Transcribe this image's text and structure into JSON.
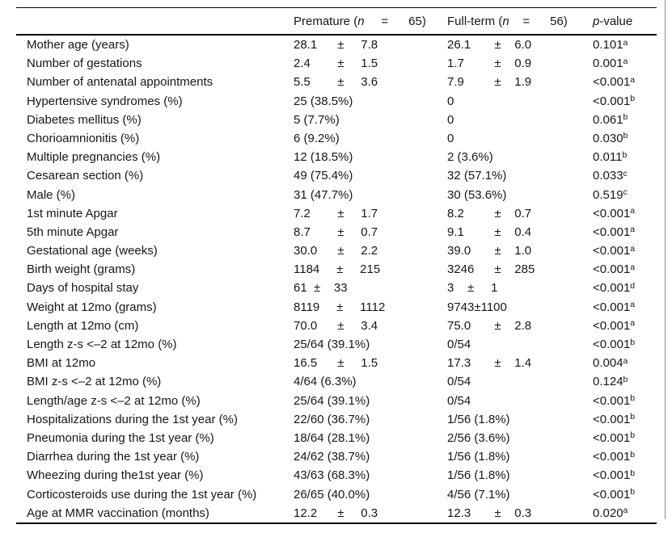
{
  "table": {
    "header": {
      "col1": "",
      "col2": {
        "prefix": "Premature (",
        "n": "n",
        "post": "     =      65)"
      },
      "col3": {
        "prefix": "Full-term (",
        "n": "n",
        "post": "    =      56)"
      },
      "col4": {
        "p": "p",
        "post": "-value"
      }
    },
    "rows": [
      {
        "label": "Mother age (years)",
        "premature": "28.1      ±     7.8",
        "fullterm": "26.1       ±    6.0",
        "p": "0.101",
        "p_sup": "a"
      },
      {
        "label": "Number of gestations",
        "premature": "2.4        ±     1.5",
        "fullterm": "1.7         ±    0.9",
        "p": "0.001",
        "p_sup": "a"
      },
      {
        "label": "Number of antenatal appointments",
        "premature": "5.5        ±     3.6",
        "fullterm": "7.9         ±    1.9",
        "p": "<0.001",
        "p_sup": "a"
      },
      {
        "label": "Hypertensive syndromes (%)",
        "premature": "25 (38.5%)",
        "fullterm": "0",
        "p": "<0.001",
        "p_sup": "b"
      },
      {
        "label": "Diabetes mellitus (%)",
        "premature": "5 (7.7%)",
        "fullterm": "0",
        "p": "0.061",
        "p_sup": "b"
      },
      {
        "label": "Chorioamnionitis (%)",
        "premature": "6 (9.2%)",
        "fullterm": "0",
        "p": "0.030",
        "p_sup": "b"
      },
      {
        "label": "Multiple pregnancies (%)",
        "premature": "12 (18.5%)",
        "fullterm": "2 (3.6%)",
        "p": "0.011",
        "p_sup": "b"
      },
      {
        "label": "Cesarean section (%)",
        "premature": "49 (75.4%)",
        "fullterm": "32 (57.1%)",
        "p": "0.033",
        "p_sup": "c"
      },
      {
        "label": "Male (%)",
        "premature": "31 (47.7%)",
        "fullterm": "30 (53.6%)",
        "p": "0.519",
        "p_sup": "c"
      },
      {
        "label": "1st minute Apgar",
        "premature": "7.2        ±     1.7",
        "fullterm": "8.2         ±    0.7",
        "p": "<0.001",
        "p_sup": "a"
      },
      {
        "label": "5th minute Apgar",
        "premature": "8.7        ±     0.7",
        "fullterm": "9.1         ±    0.4",
        "p": "<0.001",
        "p_sup": "a"
      },
      {
        "label": "Gestational age (weeks)",
        "premature": "30.0      ±     2.2",
        "fullterm": "39.0       ±    1.0",
        "p": "<0.001",
        "p_sup": "a"
      },
      {
        "label": "Birth weight (grams)",
        "premature": "1184     ±     215",
        "fullterm": "3246      ±    285",
        "p": "<0.001",
        "p_sup": "a"
      },
      {
        "label": "Days of hospital stay",
        "premature": "61  ±    33",
        "fullterm": "3    ±     1",
        "p": "<0.001",
        "p_sup": "d"
      },
      {
        "label": "Weight at 12mo (grams)",
        "premature": "8119     ±     1112",
        "fullterm": "9743±1100",
        "p": "<0.001",
        "p_sup": "a"
      },
      {
        "label": "Length at 12mo (cm)",
        "premature": "70.0      ±     3.4",
        "fullterm": "75.0       ±    2.8",
        "p": "<0.001",
        "p_sup": "a"
      },
      {
        "label": "Length z-s <–2 at 12mo (%)",
        "premature": "25/64 (39.1%)",
        "fullterm": "0/54",
        "p": "<0.001",
        "p_sup": "b"
      },
      {
        "label": "BMI at 12mo",
        "premature": "16.5      ±     1.5",
        "fullterm": "17.3       ±    1.4",
        "p": "0.004",
        "p_sup": "a"
      },
      {
        "label": "BMI z-s <–2 at 12mo (%)",
        "premature": "4/64 (6.3%)",
        "fullterm": "0/54",
        "p": "0.124",
        "p_sup": "b"
      },
      {
        "label": "Length/age z-s <–2 at 12mo (%)",
        "premature": "25/64 (39.1%)",
        "fullterm": "0/54",
        "p": "<0.001",
        "p_sup": "b"
      },
      {
        "label": "Hospitalizations during the 1st year (%)",
        "premature": "22/60 (36.7%)",
        "fullterm": "1/56 (1.8%)",
        "p": "<0.001",
        "p_sup": "b"
      },
      {
        "label": "Pneumonia during the 1st year (%)",
        "premature": "18/64 (28.1%)",
        "fullterm": "2/56 (3.6%)",
        "p": "<0.001",
        "p_sup": "b"
      },
      {
        "label": "Diarrhea during the 1st year (%)",
        "premature": "24/62 (38.7%)",
        "fullterm": "1/56 (1.8%)",
        "p": "<0.001",
        "p_sup": "b"
      },
      {
        "label": "Wheezing during the1st year (%)",
        "premature": "43/63 (68.3%)",
        "fullterm": "1/56 (1.8%)",
        "p": "<0.001",
        "p_sup": "b"
      },
      {
        "label": "Corticosteroids use during the 1st year (%)",
        "premature": "26/65 (40.0%)",
        "fullterm": "4/56 (7.1%)",
        "p": "<0.001",
        "p_sup": "b"
      },
      {
        "label": "Age at MMR vaccination (months)",
        "premature": "12.2      ±     0.3",
        "fullterm": "12.3       ±    0.3",
        "p": "0.020",
        "p_sup": "a"
      }
    ]
  }
}
